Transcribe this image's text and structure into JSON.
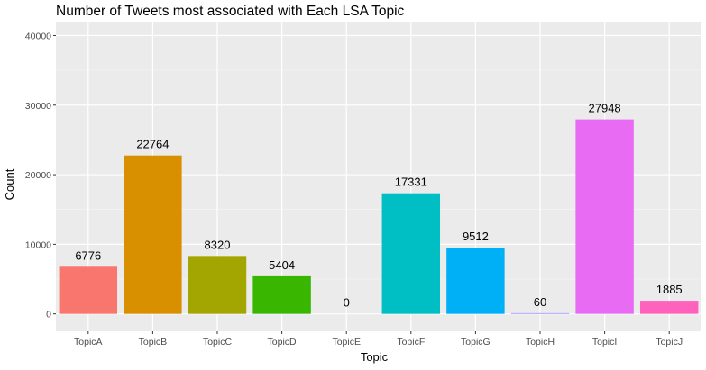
{
  "chart_data": {
    "type": "bar",
    "title": "Number of Tweets most associated with Each LSA Topic",
    "xlabel": "Topic",
    "ylabel": "Count",
    "categories": [
      "TopicA",
      "TopicB",
      "TopicC",
      "TopicD",
      "TopicE",
      "TopicF",
      "TopicG",
      "TopicH",
      "TopicI",
      "TopicJ"
    ],
    "values": [
      6776,
      22764,
      8320,
      5404,
      0,
      17331,
      9512,
      60,
      27948,
      1885
    ],
    "colors": [
      "#F8766D",
      "#D89000",
      "#A3A500",
      "#39B600",
      "#00BF7D",
      "#00BFC4",
      "#00B0F6",
      "#9590FF",
      "#E76BF3",
      "#FF62BC"
    ],
    "ylim": [
      -2500,
      42000
    ],
    "yticks": [
      0,
      10000,
      20000,
      30000,
      40000
    ],
    "panel_background": "#EBEBEB",
    "grid": true,
    "legend": "none"
  }
}
